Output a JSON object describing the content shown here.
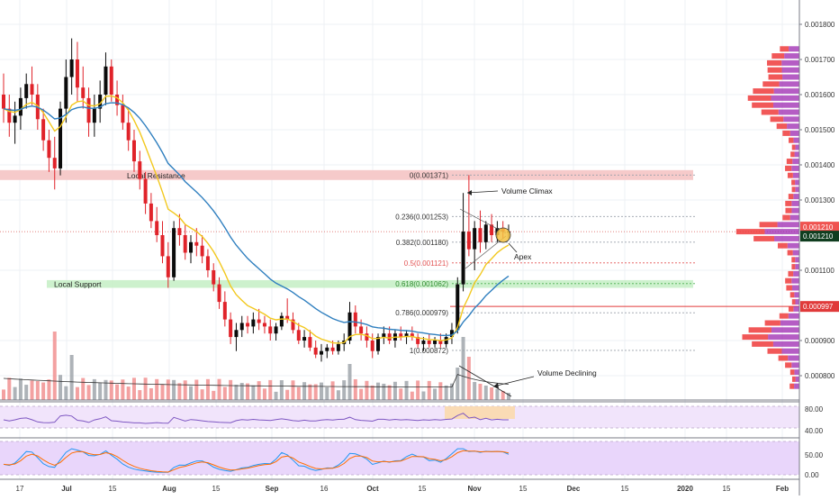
{
  "chart_data": {
    "type": "candlestick",
    "title": "",
    "xlabel": "",
    "ylabel": "",
    "ylim": [
      0.00075,
      0.00185
    ],
    "x_tick_labels": [
      "17",
      "Jul",
      "15",
      "Aug",
      "15",
      "Sep",
      "16",
      "Oct",
      "15",
      "Nov",
      "15",
      "Dec",
      "15",
      "2020",
      "15",
      "Feb"
    ],
    "y_tick_labels": [
      "0.001800",
      "0.001700",
      "0.001600",
      "0.001500",
      "0.001400",
      "0.001300",
      "0.001100",
      "0.000900",
      "0.000800"
    ],
    "price_labels": {
      "current": "0.001210",
      "current_dark": "0.001210",
      "red_level": "0.000997"
    },
    "fibonacci_levels": [
      {
        "label": "0(0.001371)",
        "value": 0.001371
      },
      {
        "label": "0.236(0.001253)",
        "value": 0.001253
      },
      {
        "label": "0.382(0.001180)",
        "value": 0.00118
      },
      {
        "label": "0.5(0.001121)",
        "value": 0.001121
      },
      {
        "label": "0.618(0.001062)",
        "value": 0.001062
      },
      {
        "label": "0.786(0.000979)",
        "value": 0.000979
      },
      {
        "label": "1(0.000872)",
        "value": 0.000872
      }
    ],
    "zones": [
      {
        "label": "Local Resistance",
        "low": 0.001357,
        "high": 0.001385,
        "color": "#f5c4c4"
      },
      {
        "label": "Local Support",
        "low": 0.00105,
        "high": 0.001072,
        "color": "#c8efc8"
      }
    ],
    "annotations": [
      "Volume Climax",
      "Apex",
      "Volume Declining"
    ],
    "candles": [
      [
        0.0016,
        0.00166,
        0.00152,
        0.00156
      ],
      [
        0.00156,
        0.0016,
        0.00148,
        0.00152
      ],
      [
        0.00152,
        0.00158,
        0.00146,
        0.00154
      ],
      [
        0.00154,
        0.00162,
        0.0015,
        0.00159
      ],
      [
        0.00159,
        0.00166,
        0.00156,
        0.00163
      ],
      [
        0.00163,
        0.00168,
        0.00157,
        0.0016
      ],
      [
        0.0016,
        0.00163,
        0.0015,
        0.00153
      ],
      [
        0.00153,
        0.00156,
        0.00144,
        0.00147
      ],
      [
        0.00147,
        0.0015,
        0.00138,
        0.00142
      ],
      [
        0.00142,
        0.00148,
        0.00133,
        0.00139
      ],
      [
        0.00139,
        0.00158,
        0.00137,
        0.00156
      ],
      [
        0.00156,
        0.0017,
        0.00152,
        0.00165
      ],
      [
        0.00165,
        0.00176,
        0.0016,
        0.0017
      ],
      [
        0.0017,
        0.00175,
        0.00158,
        0.00162
      ],
      [
        0.00162,
        0.00168,
        0.00156,
        0.00159
      ],
      [
        0.00159,
        0.00162,
        0.00148,
        0.00152
      ],
      [
        0.00152,
        0.0016,
        0.00148,
        0.00156
      ],
      [
        0.00156,
        0.00164,
        0.00152,
        0.0016
      ],
      [
        0.0016,
        0.00172,
        0.00157,
        0.00168
      ],
      [
        0.00168,
        0.0017,
        0.00158,
        0.0016
      ],
      [
        0.0016,
        0.00164,
        0.00154,
        0.00157
      ],
      [
        0.00157,
        0.0016,
        0.0015,
        0.00152
      ],
      [
        0.00152,
        0.00156,
        0.00144,
        0.00147
      ],
      [
        0.00147,
        0.0015,
        0.00138,
        0.00141
      ],
      [
        0.00141,
        0.00144,
        0.00133,
        0.00136
      ],
      [
        0.00136,
        0.00138,
        0.00126,
        0.00129
      ],
      [
        0.00129,
        0.00132,
        0.00122,
        0.00124
      ],
      [
        0.00124,
        0.00128,
        0.00118,
        0.0012
      ],
      [
        0.0012,
        0.00124,
        0.00112,
        0.00114
      ],
      [
        0.00114,
        0.00118,
        0.00105,
        0.00108
      ],
      [
        0.00108,
        0.00124,
        0.00107,
        0.00122
      ],
      [
        0.00122,
        0.00126,
        0.00117,
        0.0012
      ],
      [
        0.0012,
        0.00123,
        0.00113,
        0.00115
      ],
      [
        0.00115,
        0.0012,
        0.00112,
        0.00118
      ],
      [
        0.00118,
        0.00122,
        0.00114,
        0.00117
      ],
      [
        0.00117,
        0.0012,
        0.00112,
        0.00114
      ],
      [
        0.00114,
        0.00116,
        0.00108,
        0.0011
      ],
      [
        0.0011,
        0.00112,
        0.00104,
        0.00106
      ],
      [
        0.00106,
        0.00108,
        0.00099,
        0.00101
      ],
      [
        0.00101,
        0.00104,
        0.00094,
        0.00096
      ],
      [
        0.00096,
        0.00098,
        0.00089,
        0.00091
      ],
      [
        0.00091,
        0.00095,
        0.00087,
        0.00093
      ],
      [
        0.00093,
        0.00097,
        0.00091,
        0.00095
      ],
      [
        0.00095,
        0.00097,
        0.00092,
        0.00094
      ],
      [
        0.00094,
        0.00098,
        0.00092,
        0.00096
      ],
      [
        0.00096,
        0.00099,
        0.00093,
        0.00095
      ],
      [
        0.00095,
        0.00097,
        0.00092,
        0.00094
      ],
      [
        0.00094,
        0.00096,
        0.0009,
        0.00092
      ],
      [
        0.00092,
        0.00095,
        0.0009,
        0.00094
      ],
      [
        0.00094,
        0.00098,
        0.00093,
        0.00097
      ],
      [
        0.00097,
        0.00102,
        0.00095,
        0.00096
      ],
      [
        0.00096,
        0.00098,
        0.00092,
        0.00093
      ],
      [
        0.00093,
        0.00095,
        0.00089,
        0.0009
      ],
      [
        0.0009,
        0.00093,
        0.00088,
        0.00091
      ],
      [
        0.00091,
        0.00093,
        0.00087,
        0.00088
      ],
      [
        0.00088,
        0.0009,
        0.00085,
        0.00086
      ],
      [
        0.00086,
        0.00089,
        0.00084,
        0.00087
      ],
      [
        0.00087,
        0.00089,
        0.00085,
        0.00088
      ],
      [
        0.00088,
        0.0009,
        0.00086,
        0.00087
      ],
      [
        0.00087,
        0.0009,
        0.00086,
        0.00089
      ],
      [
        0.00089,
        0.00092,
        0.00087,
        0.0009
      ],
      [
        0.0009,
        0.00101,
        0.00089,
        0.00098
      ],
      [
        0.00098,
        0.001,
        0.00092,
        0.00094
      ],
      [
        0.00094,
        0.00096,
        0.0009,
        0.00092
      ],
      [
        0.00092,
        0.00094,
        0.00088,
        0.0009
      ],
      [
        0.0009,
        0.00092,
        0.00085,
        0.00087
      ],
      [
        0.00087,
        0.00092,
        0.00086,
        0.00091
      ],
      [
        0.00091,
        0.00094,
        0.00089,
        0.00092
      ],
      [
        0.00092,
        0.00094,
        0.00089,
        0.0009
      ],
      [
        0.0009,
        0.00093,
        0.00088,
        0.00092
      ],
      [
        0.00092,
        0.00094,
        0.0009,
        0.00091
      ],
      [
        0.00091,
        0.00093,
        0.00089,
        0.00092
      ],
      [
        0.00092,
        0.00094,
        0.0009,
        0.00091
      ],
      [
        0.00091,
        0.00092,
        0.00088,
        0.00089
      ],
      [
        0.00089,
        0.00091,
        0.00087,
        0.0009
      ],
      [
        0.0009,
        0.00092,
        0.00088,
        0.00089
      ],
      [
        0.00089,
        0.00091,
        0.00088,
        0.0009
      ],
      [
        0.0009,
        0.00092,
        0.00088,
        0.00089
      ],
      [
        0.00089,
        0.00092,
        0.00088,
        0.00091
      ],
      [
        0.00091,
        0.00095,
        0.00089,
        0.00093
      ],
      [
        0.00093,
        0.00108,
        0.00092,
        0.00106
      ],
      [
        0.00106,
        0.00132,
        0.00104,
        0.00121
      ],
      [
        0.00121,
        0.001371,
        0.00114,
        0.00116
      ],
      [
        0.00116,
        0.00124,
        0.0011,
        0.00122
      ],
      [
        0.00122,
        0.00127,
        0.00115,
        0.00118
      ],
      [
        0.00118,
        0.00124,
        0.00116,
        0.00123
      ],
      [
        0.00123,
        0.00126,
        0.00118,
        0.0012
      ],
      [
        0.0012,
        0.00124,
        0.00118,
        0.00122
      ],
      [
        0.00122,
        0.00124,
        0.00119,
        0.00121
      ],
      [
        0.00121,
        0.00123,
        0.00119,
        0.00121
      ]
    ]
  }
}
